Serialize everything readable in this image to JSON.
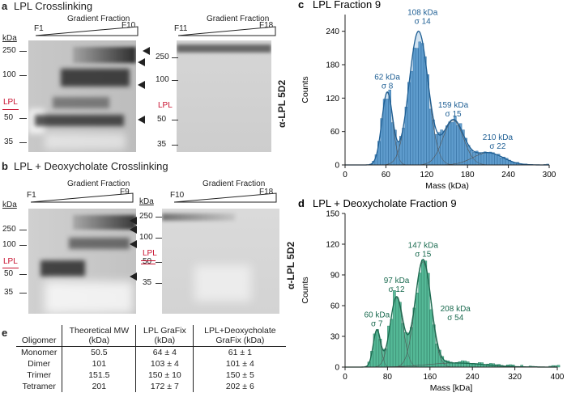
{
  "panel_a": {
    "letter": "a",
    "title": "LPL Crosslinking",
    "left": {
      "start": "F1",
      "end": "F10",
      "gradient": "Gradient Fraction"
    },
    "right": {
      "start": "F11",
      "end": "F18",
      "gradient": "Gradient Fraction"
    },
    "kda_label": "kDa",
    "markers": [
      "250",
      "100",
      "50",
      "35"
    ],
    "lpl": "LPL",
    "antibody": "α-LPL 5D2"
  },
  "panel_b": {
    "letter": "b",
    "title": "LPL + Deoxycholate Crosslinking",
    "left": {
      "start": "F1",
      "end": "F9",
      "gradient": "Gradient Fraction"
    },
    "right": {
      "start": "F10",
      "end": "F18",
      "gradient": "Gradient Fraction"
    },
    "kda_label": "kDa",
    "markers": [
      "250",
      "100",
      "50",
      "35"
    ],
    "lpl": "LPL",
    "antibody": "α-LPL 5D2"
  },
  "panel_e": {
    "letter": "e",
    "headers": [
      "Oligomer",
      "Theoretical MW (kDa)",
      "LPL GraFix (kDa)",
      "LPL+Deoxycholate GraFix (kDa)"
    ],
    "rows": [
      [
        "Monomer",
        "50.5",
        "64 ± 4",
        "61 ± 1"
      ],
      [
        "Dimer",
        "101",
        "103 ± 4",
        "101 ± 4"
      ],
      [
        "Trimer",
        "151.5",
        "150 ± 10",
        "150 ± 5"
      ],
      [
        "Tetramer",
        "201",
        "172 ± 7",
        "202 ± 6"
      ]
    ]
  },
  "chart_data": [
    {
      "type": "histogram",
      "letter": "c",
      "title": "LPL Fraction 9",
      "xlabel": "Mass (kDa)",
      "ylabel": "Counts",
      "xlim": [
        0,
        300
      ],
      "ylim": [
        0,
        270
      ],
      "xticks": [
        "0",
        "60",
        "120",
        "180",
        "240",
        "300"
      ],
      "yticks": [
        "0",
        "60",
        "120",
        "180",
        "240"
      ],
      "color": "#4b8fc7",
      "edge": "#1f5f94",
      "peaks": [
        {
          "mean": 62,
          "sigma": 8,
          "amp": 130,
          "label1": "62 kDa",
          "label2": "σ 8"
        },
        {
          "mean": 108,
          "sigma": 14,
          "amp": 240,
          "label1": "108 kDa",
          "label2": "σ 14"
        },
        {
          "mean": 159,
          "sigma": 15,
          "amp": 80,
          "label1": "159 kDa",
          "label2": "σ 15"
        },
        {
          "mean": 210,
          "sigma": 22,
          "amp": 22,
          "label1": "210 kDa",
          "label2": "σ 22"
        }
      ]
    },
    {
      "type": "histogram",
      "letter": "d",
      "title": "LPL + Deoxycholate Fraction 9",
      "xlabel": "Mass [kDa]",
      "ylabel": "Counts",
      "xlim": [
        0,
        400
      ],
      "ylim": [
        0,
        150
      ],
      "xticks": [
        "0",
        "80",
        "160",
        "240",
        "320",
        "400"
      ],
      "yticks": [
        "0",
        "30",
        "60",
        "90",
        "120",
        "150"
      ],
      "color": "#3fb08a",
      "edge": "#1b6b50",
      "peaks": [
        {
          "mean": 60,
          "sigma": 7,
          "amp": 36,
          "label1": "60 kDa",
          "label2": "σ 7"
        },
        {
          "mean": 97,
          "sigma": 12,
          "amp": 68,
          "label1": "97 kDa",
          "label2": "σ 12"
        },
        {
          "mean": 147,
          "sigma": 15,
          "amp": 103,
          "label1": "147 kDa",
          "label2": "σ 15"
        },
        {
          "mean": 208,
          "sigma": 54,
          "amp": 4,
          "label1": "208 kDa",
          "label2": "σ 54"
        }
      ]
    }
  ]
}
